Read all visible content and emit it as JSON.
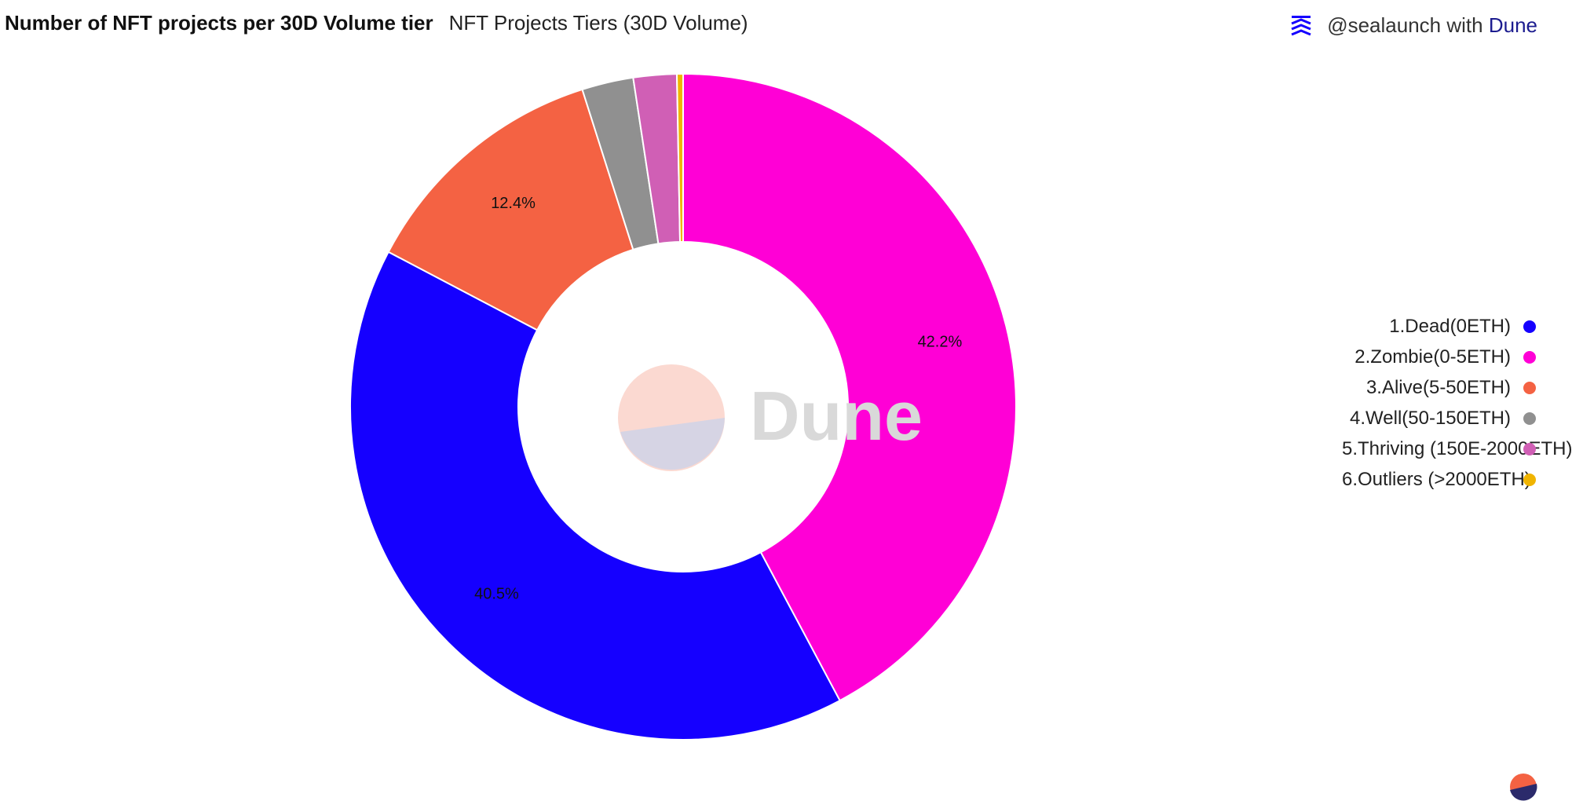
{
  "header": {
    "title": "Number of NFT projects per 30D Volume tier",
    "subtitle": "NFT Projects Tiers (30D Volume)"
  },
  "attribution": {
    "handle": "@sealaunch",
    "with": "with",
    "brand": "Dune"
  },
  "watermark": {
    "text": "Dune"
  },
  "chart_data": {
    "type": "pie",
    "donut": true,
    "title": "Number of NFT projects per 30D Volume tier",
    "subtitle": "NFT Projects Tiers (30D Volume)",
    "legend_position": "right",
    "series": [
      {
        "name": "1.Dead(0ETH)",
        "value": 40.5,
        "label": "40.5%",
        "color": "#1500ff"
      },
      {
        "name": "2.Zombie(0-5ETH)",
        "value": 42.2,
        "label": "42.2%",
        "color": "#ff00d6"
      },
      {
        "name": "3.Alive(5-50ETH)",
        "value": 12.4,
        "label": "12.4%",
        "color": "#f46243"
      },
      {
        "name": "4.Well(50-150ETH)",
        "value": 2.5,
        "label": "",
        "color": "#909090"
      },
      {
        "name": "5.Thriving (150E-2000ETH)",
        "value": 2.1,
        "label": "",
        "color": "#d05fb5"
      },
      {
        "name": "6.Outliers (>2000ETH)",
        "value": 0.3,
        "label": "",
        "color": "#f0b400"
      }
    ]
  },
  "colors": {
    "watermark_text": "#d9d9d9",
    "watermark_top": "#fbd9d1",
    "watermark_bottom": "#d6d4e4"
  }
}
